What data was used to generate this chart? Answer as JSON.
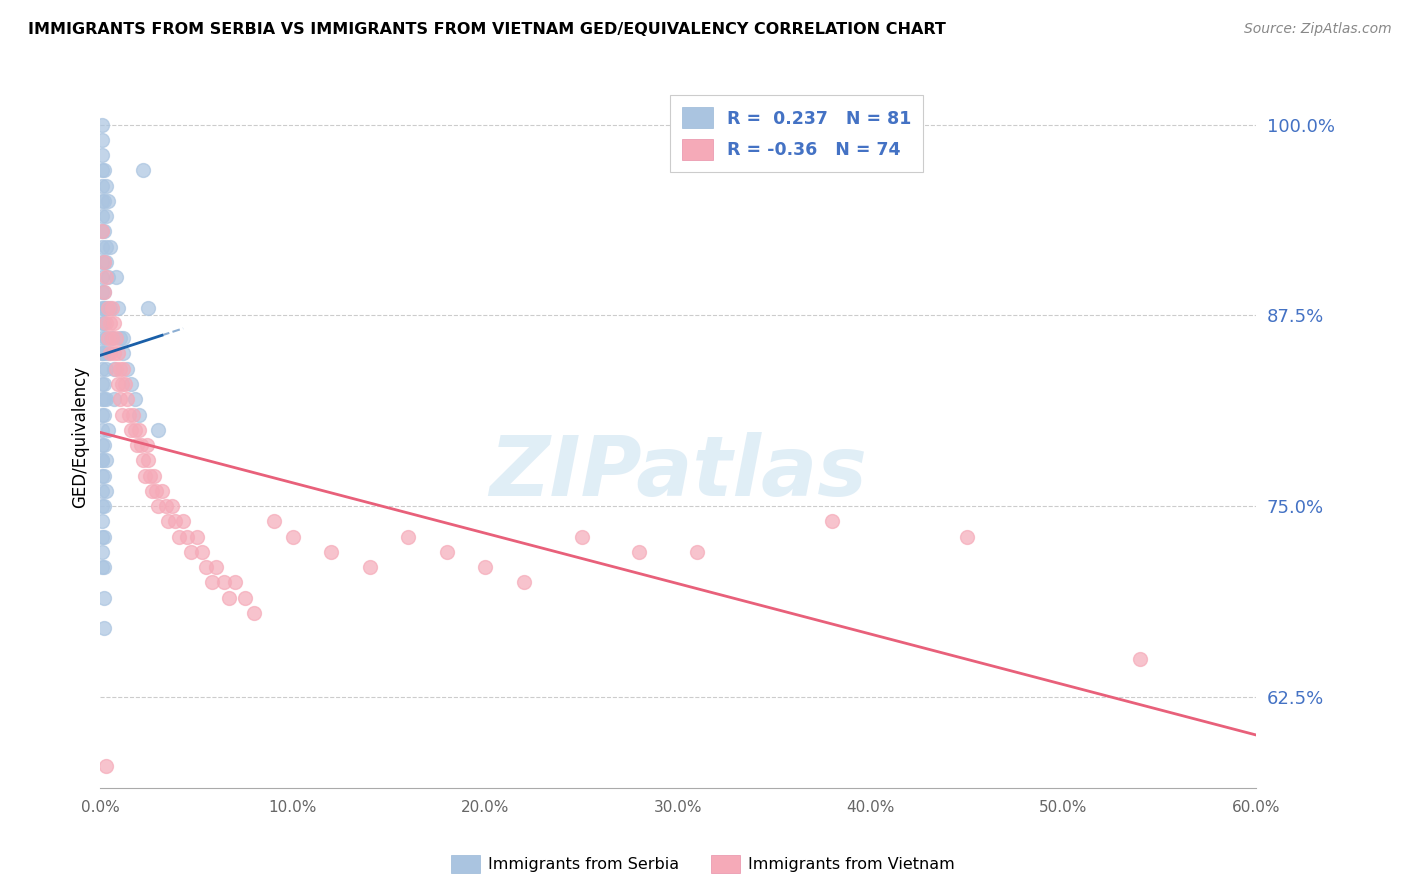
{
  "title": "IMMIGRANTS FROM SERBIA VS IMMIGRANTS FROM VIETNAM GED/EQUIVALENCY CORRELATION CHART",
  "source": "Source: ZipAtlas.com",
  "ylabel": "GED/Equivalency",
  "ytick_labels": [
    "100.0%",
    "87.5%",
    "75.0%",
    "62.5%"
  ],
  "ytick_values": [
    1.0,
    0.875,
    0.75,
    0.625
  ],
  "xmin": 0.0,
  "xmax": 0.6,
  "ymin": 0.565,
  "ymax": 1.025,
  "serbia_R": 0.237,
  "serbia_N": 81,
  "vietnam_R": -0.36,
  "vietnam_N": 74,
  "serbia_color": "#aac4e0",
  "vietnam_color": "#f5aab8",
  "serbia_line_color": "#1a5fa8",
  "vietnam_line_color": "#e8607a",
  "legend_serbia_label": "Immigrants from Serbia",
  "legend_vietnam_label": "Immigrants from Vietnam",
  "watermark": "ZIPatlas",
  "serbia_x": [
    0.001,
    0.001,
    0.001,
    0.001,
    0.001,
    0.001,
    0.001,
    0.001,
    0.001,
    0.001,
    0.001,
    0.001,
    0.001,
    0.001,
    0.001,
    0.001,
    0.001,
    0.001,
    0.001,
    0.001,
    0.001,
    0.001,
    0.001,
    0.001,
    0.001,
    0.001,
    0.001,
    0.001,
    0.001,
    0.001,
    0.002,
    0.002,
    0.002,
    0.002,
    0.002,
    0.002,
    0.002,
    0.002,
    0.002,
    0.002,
    0.002,
    0.002,
    0.002,
    0.002,
    0.002,
    0.002,
    0.003,
    0.003,
    0.003,
    0.003,
    0.003,
    0.003,
    0.003,
    0.003,
    0.003,
    0.004,
    0.004,
    0.004,
    0.004,
    0.005,
    0.005,
    0.006,
    0.007,
    0.007,
    0.008,
    0.009,
    0.01,
    0.012,
    0.014,
    0.016,
    0.018,
    0.02,
    0.022,
    0.025,
    0.03,
    0.012,
    0.003,
    0.002,
    0.001,
    0.002,
    0.001
  ],
  "serbia_y": [
    1.0,
    0.99,
    0.98,
    0.97,
    0.96,
    0.95,
    0.94,
    0.93,
    0.92,
    0.91,
    0.9,
    0.89,
    0.88,
    0.87,
    0.86,
    0.85,
    0.84,
    0.83,
    0.82,
    0.81,
    0.8,
    0.79,
    0.78,
    0.77,
    0.76,
    0.75,
    0.74,
    0.73,
    0.72,
    0.71,
    0.97,
    0.95,
    0.93,
    0.91,
    0.89,
    0.87,
    0.85,
    0.83,
    0.81,
    0.79,
    0.77,
    0.75,
    0.73,
    0.71,
    0.69,
    0.67,
    0.96,
    0.94,
    0.92,
    0.88,
    0.86,
    0.84,
    0.82,
    0.78,
    0.76,
    0.95,
    0.9,
    0.85,
    0.8,
    0.92,
    0.88,
    0.86,
    0.84,
    0.82,
    0.9,
    0.88,
    0.86,
    0.85,
    0.84,
    0.83,
    0.82,
    0.81,
    0.97,
    0.88,
    0.8,
    0.86,
    0.91,
    0.88,
    0.85,
    0.82,
    0.78
  ],
  "vietnam_x": [
    0.001,
    0.002,
    0.002,
    0.003,
    0.003,
    0.004,
    0.004,
    0.005,
    0.005,
    0.006,
    0.006,
    0.007,
    0.007,
    0.008,
    0.008,
    0.009,
    0.009,
    0.01,
    0.01,
    0.011,
    0.011,
    0.012,
    0.013,
    0.014,
    0.015,
    0.016,
    0.017,
    0.018,
    0.019,
    0.02,
    0.021,
    0.022,
    0.023,
    0.024,
    0.025,
    0.026,
    0.027,
    0.028,
    0.029,
    0.03,
    0.032,
    0.034,
    0.035,
    0.037,
    0.039,
    0.041,
    0.043,
    0.045,
    0.047,
    0.05,
    0.053,
    0.055,
    0.058,
    0.06,
    0.064,
    0.067,
    0.07,
    0.075,
    0.08,
    0.09,
    0.1,
    0.12,
    0.14,
    0.16,
    0.18,
    0.2,
    0.22,
    0.25,
    0.28,
    0.31,
    0.38,
    0.45,
    0.54,
    0.003
  ],
  "vietnam_y": [
    0.93,
    0.91,
    0.89,
    0.9,
    0.87,
    0.88,
    0.86,
    0.87,
    0.85,
    0.88,
    0.86,
    0.87,
    0.85,
    0.86,
    0.84,
    0.85,
    0.83,
    0.84,
    0.82,
    0.83,
    0.81,
    0.84,
    0.83,
    0.82,
    0.81,
    0.8,
    0.81,
    0.8,
    0.79,
    0.8,
    0.79,
    0.78,
    0.77,
    0.79,
    0.78,
    0.77,
    0.76,
    0.77,
    0.76,
    0.75,
    0.76,
    0.75,
    0.74,
    0.75,
    0.74,
    0.73,
    0.74,
    0.73,
    0.72,
    0.73,
    0.72,
    0.71,
    0.7,
    0.71,
    0.7,
    0.69,
    0.7,
    0.69,
    0.68,
    0.74,
    0.73,
    0.72,
    0.71,
    0.73,
    0.72,
    0.71,
    0.7,
    0.73,
    0.72,
    0.72,
    0.74,
    0.73,
    0.65,
    0.58
  ]
}
